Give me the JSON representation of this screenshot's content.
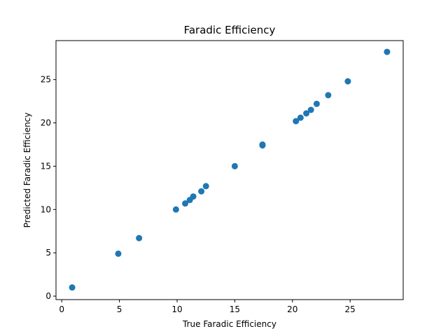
{
  "chart_data": {
    "type": "scatter",
    "title": "Faradic Efficiency",
    "xlabel": "True Faradic Efficiency",
    "ylabel": "Predicted Faradic Efficiency",
    "xlim": [
      -0.5,
      29.6
    ],
    "ylim": [
      -0.4,
      29.5
    ],
    "xticks": [
      0,
      5,
      10,
      15,
      20,
      25
    ],
    "yticks": [
      0,
      5,
      10,
      15,
      20,
      25
    ],
    "grid": false,
    "marker_color": "#1f77b4",
    "points": [
      {
        "x": 0.9,
        "y": 1.0
      },
      {
        "x": 4.9,
        "y": 4.9
      },
      {
        "x": 6.7,
        "y": 6.7
      },
      {
        "x": 9.9,
        "y": 10.0
      },
      {
        "x": 10.7,
        "y": 10.7
      },
      {
        "x": 11.1,
        "y": 11.1
      },
      {
        "x": 11.4,
        "y": 11.5
      },
      {
        "x": 12.1,
        "y": 12.1
      },
      {
        "x": 12.5,
        "y": 12.7
      },
      {
        "x": 15.0,
        "y": 15.0
      },
      {
        "x": 17.4,
        "y": 17.4
      },
      {
        "x": 17.4,
        "y": 17.5
      },
      {
        "x": 20.3,
        "y": 20.2
      },
      {
        "x": 20.7,
        "y": 20.6
      },
      {
        "x": 21.2,
        "y": 21.1
      },
      {
        "x": 21.6,
        "y": 21.5
      },
      {
        "x": 22.1,
        "y": 22.2
      },
      {
        "x": 23.1,
        "y": 23.2
      },
      {
        "x": 24.8,
        "y": 24.8
      },
      {
        "x": 28.2,
        "y": 28.2
      }
    ]
  }
}
